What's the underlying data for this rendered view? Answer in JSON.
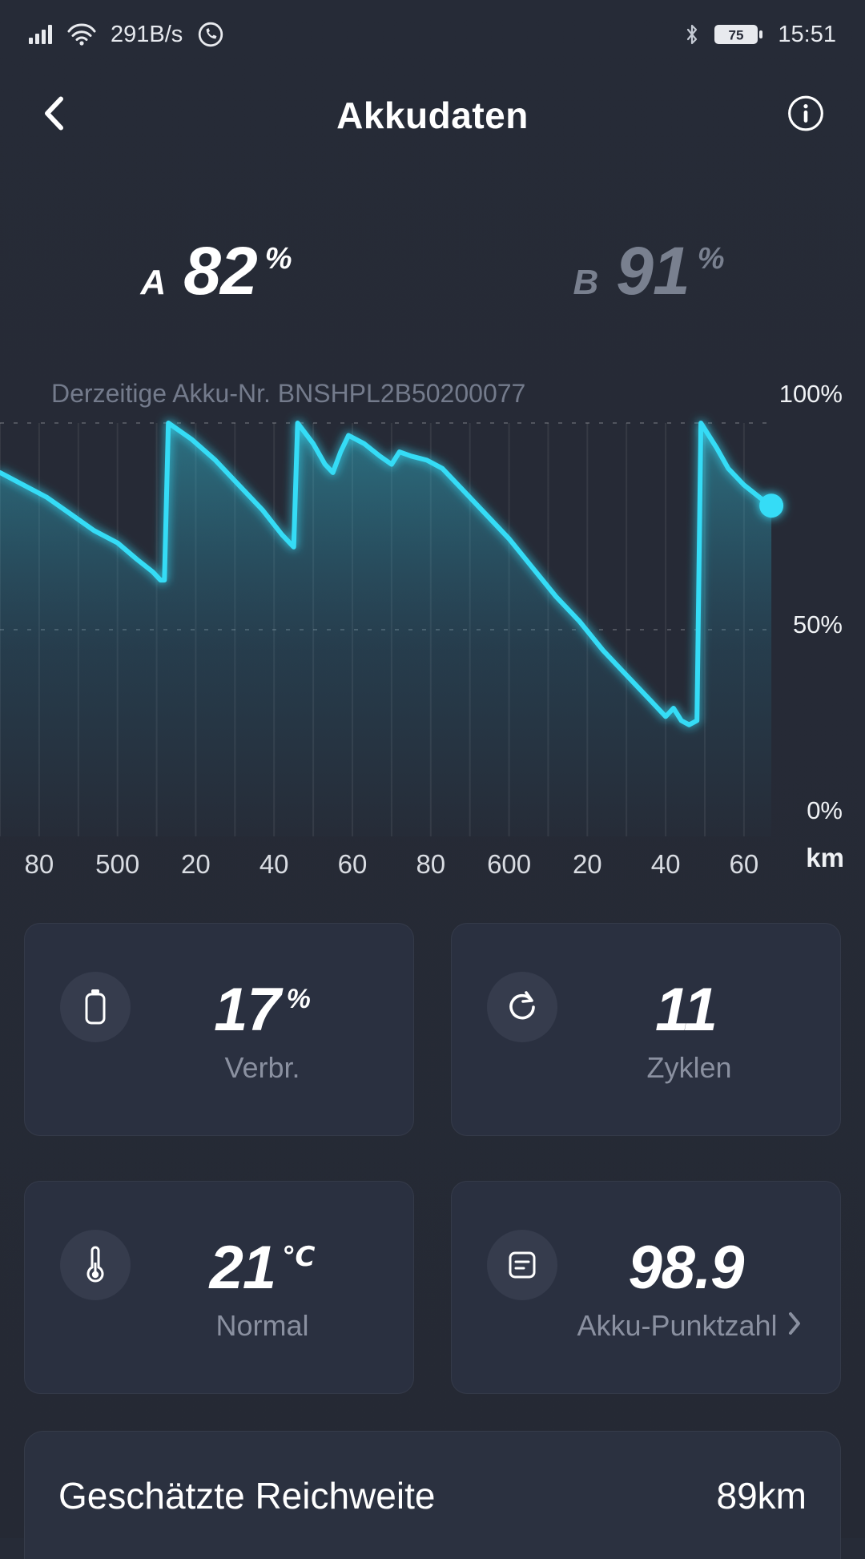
{
  "status_bar": {
    "network_speed": "291B/s",
    "battery_percent": "75",
    "time": "15:51"
  },
  "header": {
    "title": "Akkudaten"
  },
  "batteries": {
    "a": {
      "label": "A",
      "value": "82",
      "unit": "%"
    },
    "b": {
      "label": "B",
      "value": "91",
      "unit": "%"
    }
  },
  "chart_meta": {
    "battery_number": "Derzeitige Akku-Nr. BNSHPL2B50200077"
  },
  "stats": {
    "cards": [
      {
        "icon": "battery-icon",
        "value": "17",
        "unit": "%",
        "label": "Verbr."
      },
      {
        "icon": "cycles-icon",
        "value": "11",
        "unit": "",
        "label": "Zyklen"
      },
      {
        "icon": "thermometer-icon",
        "value": "21",
        "unit": "℃",
        "label": "Normal"
      },
      {
        "icon": "score-icon",
        "value": "98.9",
        "unit": "",
        "label": "Akku-Punktzahl"
      }
    ]
  },
  "range": {
    "label": "Geschätzte Reichweite",
    "value": "89km"
  },
  "chart_data": {
    "type": "area",
    "x_unit": "km",
    "x_range": [
      470,
      668
    ],
    "y_range": [
      0,
      100
    ],
    "grid_step": 10,
    "dashed_levels": [
      100,
      50
    ],
    "line_color": "#35dcf6",
    "legend": "none",
    "grid": "vertical",
    "y_ticks": [
      {
        "value": 100,
        "label": "100%"
      },
      {
        "value": 50,
        "label": "50%"
      },
      {
        "value": 0,
        "label": "0%"
      }
    ],
    "x_ticks": [
      {
        "value": 480,
        "label": "80"
      },
      {
        "value": 500,
        "label": "500"
      },
      {
        "value": 520,
        "label": "20"
      },
      {
        "value": 540,
        "label": "40"
      },
      {
        "value": 560,
        "label": "60"
      },
      {
        "value": 580,
        "label": "80"
      },
      {
        "value": 600,
        "label": "600"
      },
      {
        "value": 620,
        "label": "20"
      },
      {
        "value": 640,
        "label": "40"
      },
      {
        "value": 660,
        "label": "60"
      }
    ],
    "x_axis_unit": "km",
    "points": [
      [
        470,
        88
      ],
      [
        476,
        85
      ],
      [
        482,
        82
      ],
      [
        488,
        78
      ],
      [
        494,
        74
      ],
      [
        500,
        71
      ],
      [
        505,
        67
      ],
      [
        509,
        64
      ],
      [
        511,
        62
      ],
      [
        512,
        62
      ],
      [
        513,
        100
      ],
      [
        519,
        96
      ],
      [
        525,
        91
      ],
      [
        531,
        85
      ],
      [
        537,
        79
      ],
      [
        542,
        73
      ],
      [
        545,
        70
      ],
      [
        546,
        100
      ],
      [
        550,
        95
      ],
      [
        553,
        90
      ],
      [
        555,
        88
      ],
      [
        557,
        93
      ],
      [
        559,
        97
      ],
      [
        563,
        95
      ],
      [
        567,
        92
      ],
      [
        570,
        90
      ],
      [
        572,
        93
      ],
      [
        575,
        92
      ],
      [
        579,
        91
      ],
      [
        583,
        89
      ],
      [
        588,
        84
      ],
      [
        594,
        78
      ],
      [
        600,
        72
      ],
      [
        606,
        65
      ],
      [
        612,
        58
      ],
      [
        618,
        52
      ],
      [
        624,
        45
      ],
      [
        630,
        39
      ],
      [
        636,
        33
      ],
      [
        640,
        29
      ],
      [
        642,
        31
      ],
      [
        644,
        28
      ],
      [
        646,
        27
      ],
      [
        648,
        28
      ],
      [
        649,
        100
      ],
      [
        653,
        94
      ],
      [
        656,
        89
      ],
      [
        660,
        85
      ],
      [
        664,
        82
      ],
      [
        667,
        80
      ]
    ],
    "end_dot": [
      667,
      80
    ]
  }
}
